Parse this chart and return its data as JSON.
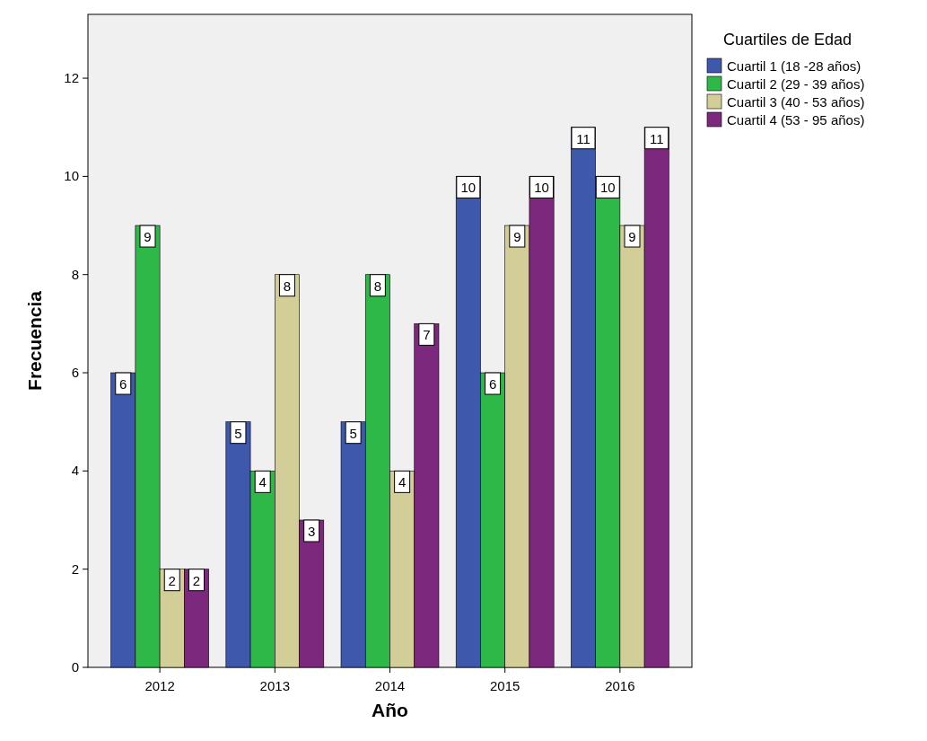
{
  "chart_data": {
    "type": "bar",
    "xlabel": "Año",
    "ylabel": "Frecuencia",
    "legend_title": "Cuartiles de Edad",
    "categories": [
      "2012",
      "2013",
      "2014",
      "2015",
      "2016"
    ],
    "series": [
      {
        "name": "Cuartil 1 (18 -28 años)",
        "color": "#3e58ac",
        "values": [
          6,
          5,
          5,
          10,
          11
        ]
      },
      {
        "name": "Cuartil 2 (29 - 39 años)",
        "color": "#2eb848",
        "values": [
          9,
          4,
          8,
          6,
          10
        ]
      },
      {
        "name": "Cuartil 3 (40 - 53 años)",
        "color": "#d3ce97",
        "values": [
          2,
          8,
          4,
          9,
          9
        ]
      },
      {
        "name": "Cuartil 4 (53 - 95 años)",
        "color": "#7c287d",
        "values": [
          2,
          3,
          7,
          10,
          11
        ]
      }
    ],
    "ylim": [
      0,
      13.3
    ],
    "yticks": [
      0,
      2,
      4,
      6,
      8,
      10,
      12
    ],
    "grid": false,
    "legend": "top right",
    "data_labels": true
  }
}
